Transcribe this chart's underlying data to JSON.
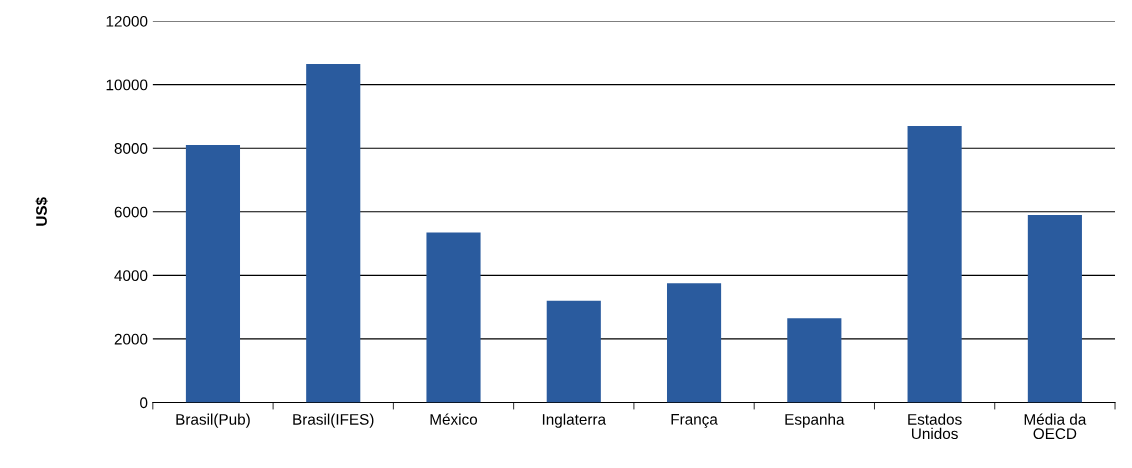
{
  "chart_data": {
    "type": "bar",
    "ylabel": "US$",
    "categories": [
      "Brasil(Pub)",
      "Brasil(IFES)",
      "México",
      "Inglaterra",
      "França",
      "Espanha",
      "Estados Unidos",
      "Média da OECD"
    ],
    "values": [
      8100,
      10650,
      5350,
      3200,
      3750,
      2650,
      8700,
      5900
    ],
    "color": "#2a5b9e",
    "ylim": [
      0,
      12000
    ],
    "yticks": [
      0,
      2000,
      4000,
      6000,
      8000,
      10000,
      12000
    ],
    "grid": "y"
  }
}
